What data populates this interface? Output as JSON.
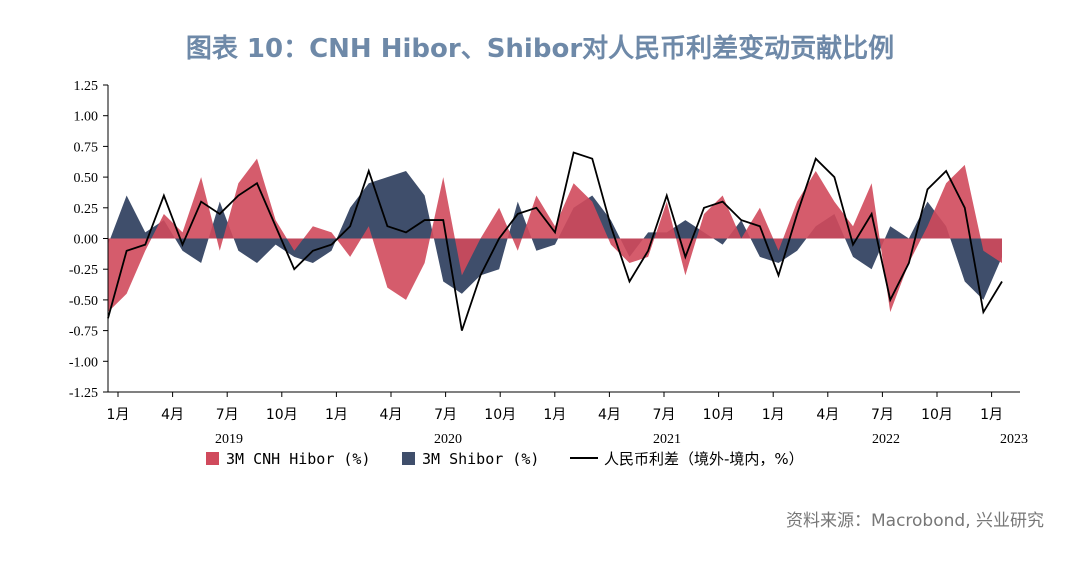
{
  "title": "图表 10：CNH Hibor、Shibor对人民币利差变动贡献比例",
  "source": "资料来源：Macrobond, 兴业研究",
  "colors": {
    "cnh": "#d04a5c",
    "shibor": "#3f4e6b",
    "spread": "#000000",
    "axis": "#000000"
  },
  "chart_data": {
    "type": "area",
    "xlabel": "",
    "ylabel": "",
    "ylim": [
      -1.25,
      1.25
    ],
    "yticks": [
      "1.25",
      "1.00",
      "0.75",
      "0.50",
      "0.25",
      "0.00",
      "-0.25",
      "-0.50",
      "-0.75",
      "-1.00",
      "-1.25"
    ],
    "month_ticks": [
      "1月",
      "4月",
      "7月",
      "10月",
      "1月",
      "4月",
      "7月",
      "10月",
      "1月",
      "4月",
      "7月",
      "10月",
      "1月",
      "4月",
      "7月",
      "10月",
      "1月"
    ],
    "years": [
      "2019",
      "2020",
      "2021",
      "2022",
      "2023"
    ],
    "x": [
      "2019-01",
      "2019-02",
      "2019-03",
      "2019-04",
      "2019-05",
      "2019-06",
      "2019-07",
      "2019-08",
      "2019-09",
      "2019-10",
      "2019-11",
      "2019-12",
      "2020-01",
      "2020-02",
      "2020-03",
      "2020-04",
      "2020-05",
      "2020-06",
      "2020-07",
      "2020-08",
      "2020-09",
      "2020-10",
      "2020-11",
      "2020-12",
      "2021-01",
      "2021-02",
      "2021-03",
      "2021-04",
      "2021-05",
      "2021-06",
      "2021-07",
      "2021-08",
      "2021-09",
      "2021-10",
      "2021-11",
      "2021-12",
      "2022-01",
      "2022-02",
      "2022-03",
      "2022-04",
      "2022-05",
      "2022-06",
      "2022-07",
      "2022-08",
      "2022-09",
      "2022-10",
      "2022-11",
      "2022-12",
      "2023-01"
    ],
    "series": [
      {
        "name": "3M CNH Hibor (%)",
        "values": [
          -0.6,
          -0.45,
          -0.1,
          0.2,
          0.05,
          0.5,
          -0.1,
          0.45,
          0.65,
          0.15,
          -0.1,
          0.1,
          0.05,
          -0.15,
          0.1,
          -0.4,
          -0.5,
          -0.2,
          0.5,
          -0.3,
          0.0,
          0.25,
          -0.1,
          0.35,
          0.1,
          0.45,
          0.3,
          -0.05,
          -0.2,
          -0.15,
          0.3,
          -0.3,
          0.2,
          0.35,
          0.0,
          0.25,
          -0.1,
          0.3,
          0.55,
          0.3,
          0.1,
          0.45,
          -0.6,
          -0.2,
          0.1,
          0.45,
          0.6,
          -0.1,
          -0.2
        ]
      },
      {
        "name": "3M Shibor (%)",
        "values": [
          -0.05,
          0.35,
          0.05,
          0.15,
          -0.1,
          -0.2,
          0.3,
          -0.1,
          -0.2,
          -0.05,
          -0.15,
          -0.2,
          -0.1,
          0.25,
          0.45,
          0.5,
          0.55,
          0.35,
          -0.35,
          -0.45,
          -0.3,
          -0.25,
          0.3,
          -0.1,
          -0.05,
          0.25,
          0.35,
          0.15,
          -0.15,
          0.05,
          0.05,
          0.15,
          0.05,
          -0.05,
          0.15,
          -0.15,
          -0.2,
          -0.1,
          0.1,
          0.2,
          -0.15,
          -0.25,
          0.1,
          0.0,
          0.3,
          0.1,
          -0.35,
          -0.5,
          -0.15
        ]
      },
      {
        "name": "人民币利差（境外-境内，%）",
        "values": [
          -0.65,
          -0.1,
          -0.05,
          0.35,
          -0.05,
          0.3,
          0.2,
          0.35,
          0.45,
          0.1,
          -0.25,
          -0.1,
          -0.05,
          0.1,
          0.55,
          0.1,
          0.05,
          0.15,
          0.15,
          -0.75,
          -0.3,
          0.0,
          0.2,
          0.25,
          0.05,
          0.7,
          0.65,
          0.1,
          -0.35,
          -0.1,
          0.35,
          -0.15,
          0.25,
          0.3,
          0.15,
          0.1,
          -0.3,
          0.2,
          0.65,
          0.5,
          -0.05,
          0.2,
          -0.5,
          -0.2,
          0.4,
          0.55,
          0.25,
          -0.6,
          -0.35
        ]
      }
    ],
    "legend": "bottom",
    "grid": false
  }
}
